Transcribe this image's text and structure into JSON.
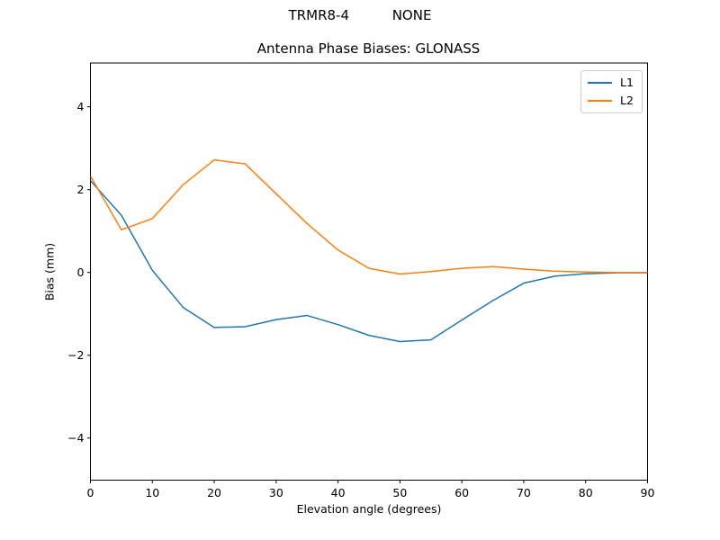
{
  "figure": {
    "suptitle": "TRMR8-4          NONE",
    "background_color": "#ffffff"
  },
  "chart_data": {
    "type": "line",
    "title": "Antenna Phase Biases: GLONASS",
    "xlabel": "Elevation angle (degrees)",
    "ylabel": "Bias (mm)",
    "x": [
      0,
      5,
      10,
      15,
      20,
      25,
      30,
      35,
      40,
      45,
      50,
      55,
      60,
      65,
      70,
      75,
      80,
      85,
      90
    ],
    "series": [
      {
        "name": "L1",
        "color": "#1f77b4",
        "values": [
          2.22,
          1.38,
          0.05,
          -0.85,
          -1.33,
          -1.31,
          -1.14,
          -1.04,
          -1.26,
          -1.52,
          -1.67,
          -1.63,
          -1.15,
          -0.68,
          -0.26,
          -0.09,
          -0.03,
          -0.01,
          -0.01
        ]
      },
      {
        "name": "L2",
        "color": "#ff7f0e",
        "values": [
          2.33,
          1.03,
          1.3,
          2.12,
          2.72,
          2.62,
          1.9,
          1.18,
          0.54,
          0.1,
          -0.04,
          0.02,
          0.1,
          0.14,
          0.08,
          0.03,
          0.01,
          0.0,
          0.0
        ]
      }
    ],
    "xlim": [
      0,
      90
    ],
    "ylim": [
      -5.05,
      5.06
    ],
    "xticks": {
      "values": [
        0,
        10,
        20,
        30,
        40,
        50,
        60,
        70,
        80,
        90
      ],
      "labels": [
        "0",
        "10",
        "20",
        "30",
        "40",
        "50",
        "60",
        "70",
        "80",
        "90"
      ]
    },
    "yticks": {
      "values": [
        -4,
        -2,
        0,
        2,
        4
      ],
      "labels": [
        "−4",
        "−2",
        "0",
        "2",
        "4"
      ]
    },
    "grid": false,
    "legend": {
      "position": "upper right",
      "entries": [
        "L1",
        "L2"
      ]
    },
    "axis_color": "#000000",
    "legend_border_color": "#cccccc"
  }
}
